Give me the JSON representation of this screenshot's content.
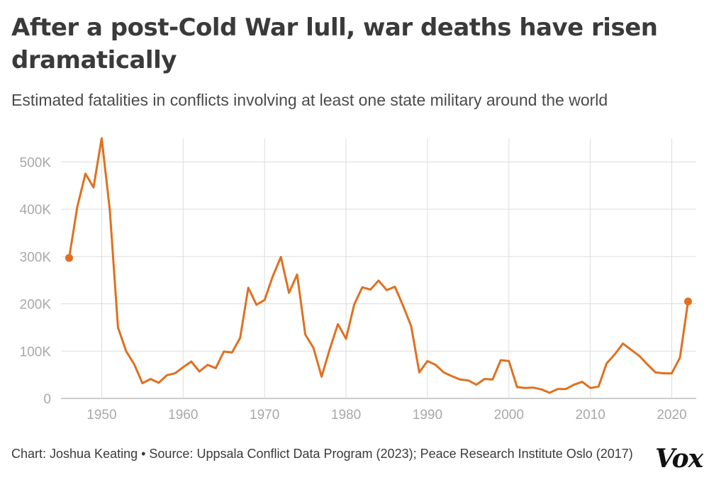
{
  "chart_data": {
    "type": "line",
    "title": "After a post-Cold War lull, war deaths have risen dramatically",
    "subtitle": "Estimated fatalities in conflicts involving at least one state military around the world",
    "xlabel": "",
    "ylabel": "",
    "xlim": [
      1945,
      2023
    ],
    "ylim": [
      0,
      550000
    ],
    "x_ticks": [
      1950,
      1960,
      1970,
      1980,
      1990,
      2000,
      2010,
      2020
    ],
    "y_ticks": [
      0,
      100000,
      200000,
      300000,
      400000,
      500000
    ],
    "y_tick_labels": [
      "0",
      "100K",
      "200K",
      "300K",
      "400K",
      "500K"
    ],
    "grid": true,
    "series": [
      {
        "name": "Estimated fatalities",
        "color": "#e0701f",
        "endpoint_markers": true,
        "x": [
          1946,
          1947,
          1948,
          1949,
          1950,
          1951,
          1952,
          1953,
          1954,
          1955,
          1956,
          1957,
          1958,
          1959,
          1960,
          1961,
          1962,
          1963,
          1964,
          1965,
          1966,
          1967,
          1968,
          1969,
          1970,
          1971,
          1972,
          1973,
          1974,
          1975,
          1976,
          1977,
          1978,
          1979,
          1980,
          1981,
          1982,
          1983,
          1984,
          1985,
          1986,
          1987,
          1988,
          1989,
          1990,
          1991,
          1992,
          1993,
          1994,
          1995,
          1996,
          1997,
          1998,
          1999,
          2000,
          2001,
          2002,
          2003,
          2004,
          2005,
          2006,
          2007,
          2008,
          2009,
          2010,
          2011,
          2012,
          2013,
          2014,
          2015,
          2016,
          2017,
          2018,
          2019,
          2020,
          2021,
          2022
        ],
        "values": [
          297000,
          405000,
          475000,
          446000,
          550000,
          398000,
          150000,
          100000,
          72000,
          32000,
          41000,
          33000,
          49000,
          53000,
          66000,
          78000,
          57000,
          71000,
          64000,
          99000,
          97000,
          128000,
          234000,
          198000,
          208000,
          258000,
          299000,
          223000,
          262000,
          135000,
          107000,
          46000,
          104000,
          157000,
          126000,
          198000,
          235000,
          230000,
          249000,
          229000,
          236000,
          196000,
          153000,
          55000,
          79000,
          71000,
          55000,
          47000,
          40000,
          38000,
          29000,
          41000,
          40000,
          81000,
          79000,
          24000,
          22000,
          23000,
          19000,
          12000,
          20000,
          20000,
          29000,
          35000,
          22000,
          25000,
          74000,
          93000,
          116000,
          103000,
          90000,
          72000,
          55000,
          53000,
          53000,
          86000,
          205000
        ]
      }
    ]
  },
  "footer": {
    "credit": "Chart: Joshua Keating • Source: Uppsala Conflict Data Program (2023); Peace Research Institute Oslo (2017)"
  },
  "logo": {
    "text": "Vox"
  }
}
